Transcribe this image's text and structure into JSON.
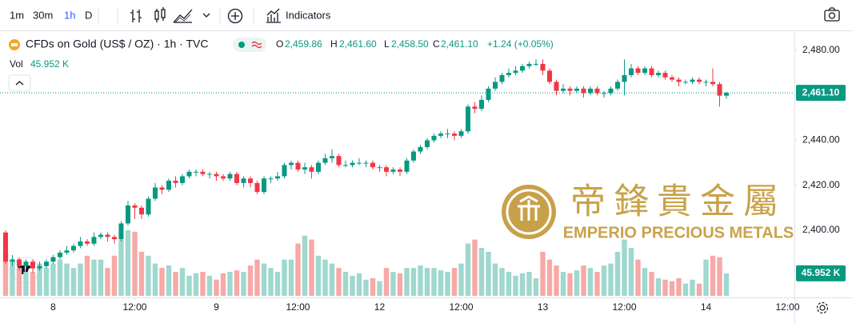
{
  "toolbar": {
    "intervals": [
      "1m",
      "30m",
      "1h",
      "D"
    ],
    "active_interval": 2,
    "indicators": "Indicators"
  },
  "legend": {
    "symbol": "CFDs on Gold (US$ / OZ) · 1h · TVC",
    "o": "O",
    "open": "2,459.86",
    "h": "H",
    "high": "2,461.60",
    "l": "L",
    "low": "2,458.50",
    "c": "C",
    "close": "2,461.10",
    "change": "+1.24 (+0.05%)",
    "vol": "Vol",
    "volume": "45.952 K"
  },
  "watermark": {
    "chinese": "帝鋒貴金屬",
    "english": "EMPERIO PRECIOUS METALS"
  },
  "chart_data": {
    "type": "candlestick",
    "up_color": "#089981",
    "down_color": "#f23645",
    "volume_up_color": "#9fd8ce",
    "volume_down_color": "#f7a9a7",
    "grid": false,
    "xlim": [
      -0.82,
      116
    ],
    "xticks": [
      {
        "value": 7,
        "label": "8"
      },
      {
        "value": 19,
        "label": "12:00"
      },
      {
        "value": 31,
        "label": "9"
      },
      {
        "value": 43,
        "label": "12:00"
      },
      {
        "value": 55,
        "label": "12"
      },
      {
        "value": 67,
        "label": "12:00"
      },
      {
        "value": 79,
        "label": "13"
      },
      {
        "value": 91,
        "label": "12:00"
      },
      {
        "value": 103,
        "label": "14"
      },
      {
        "value": 115,
        "label": "12:00"
      }
    ],
    "ylim": [
      2370.8,
      2488.2
    ],
    "yticks": [
      {
        "value": 2400,
        "label": "2,400.00"
      },
      {
        "value": 2420,
        "label": "2,420.00"
      },
      {
        "value": 2440,
        "label": "2,440.00"
      },
      {
        "value": 2460,
        "label": "2,460.00"
      },
      {
        "value": 2480,
        "label": "2,480.00"
      }
    ],
    "open": [
      2399,
      2386,
      2387,
      2384,
      2386,
      2383,
      2384,
      2386,
      2388,
      2390,
      2391,
      2393,
      2395,
      2394,
      2397,
      2398,
      2397,
      2396,
      2403,
      2411,
      2410,
      2407,
      2414,
      2419,
      2418,
      2422,
      2421,
      2424,
      2426,
      2426,
      2425,
      2425,
      2424,
      2423,
      2425,
      2421,
      2423,
      2421,
      2417,
      2423,
      2423,
      2424,
      2429,
      2430,
      2427,
      2428,
      2426,
      2430,
      2432,
      2433,
      2429,
      2429,
      2430,
      2430,
      2430,
      2428,
      2428,
      2426,
      2427,
      2426,
      2431,
      2435,
      2437,
      2440,
      2442,
      2443,
      2443,
      2442,
      2444,
      2455,
      2454,
      2458,
      2463,
      2466,
      2469,
      2470,
      2471,
      2473,
      2474,
      2474,
      2471,
      2466,
      2462,
      2463,
      2462,
      2463,
      2461,
      2463,
      2461,
      2461,
      2463,
      2466,
      2469,
      2472,
      2470,
      2472,
      2469,
      2470,
      2468,
      2467,
      2466,
      2466,
      2467,
      2466,
      2466,
      2465,
      2459.86
    ],
    "high": [
      2400,
      2389,
      2388,
      2387,
      2387,
      2386,
      2387,
      2389,
      2391,
      2393,
      2394,
      2397,
      2396,
      2399,
      2399,
      2399,
      2398,
      2404,
      2413,
      2412,
      2411,
      2415,
      2421,
      2420,
      2423,
      2424,
      2425,
      2427,
      2427,
      2427,
      2426,
      2426,
      2425,
      2426,
      2426,
      2424,
      2424,
      2422,
      2424,
      2424,
      2426,
      2430,
      2431,
      2431,
      2430,
      2429,
      2431,
      2434,
      2436,
      2434,
      2431,
      2431,
      2432,
      2431,
      2431,
      2429,
      2429,
      2428,
      2428,
      2432,
      2436,
      2438,
      2441,
      2443,
      2444,
      2445,
      2444,
      2445,
      2456,
      2457,
      2460,
      2464,
      2468,
      2470,
      2472,
      2473,
      2474,
      2475,
      2476,
      2476,
      2472,
      2467,
      2465,
      2464,
      2464,
      2464,
      2464,
      2464,
      2462,
      2464,
      2467,
      2476,
      2474,
      2473,
      2473,
      2473,
      2471,
      2471,
      2469,
      2468,
      2467,
      2468,
      2468,
      2467,
      2472,
      2466,
      2461.6
    ],
    "low": [
      2385,
      2384,
      2382,
      2383,
      2381,
      2382,
      2383,
      2385,
      2387,
      2389,
      2390,
      2392,
      2393,
      2393,
      2396,
      2395,
      2394,
      2395,
      2402,
      2405,
      2405,
      2406,
      2413,
      2416,
      2417,
      2419,
      2420,
      2423,
      2424,
      2424,
      2423,
      2422,
      2422,
      2422,
      2420,
      2419,
      2419,
      2416,
      2416,
      2421,
      2422,
      2423,
      2427,
      2426,
      2425,
      2423,
      2425,
      2429,
      2430,
      2428,
      2428,
      2428,
      2429,
      2428,
      2427,
      2426,
      2424,
      2425,
      2424,
      2425,
      2430,
      2434,
      2436,
      2439,
      2441,
      2441,
      2440,
      2441,
      2443,
      2452,
      2453,
      2457,
      2462,
      2465,
      2468,
      2469,
      2470,
      2472,
      2473,
      2469,
      2465,
      2460,
      2461,
      2460,
      2461,
      2459,
      2460,
      2460,
      2459,
      2460,
      2462,
      2460,
      2468,
      2469,
      2469,
      2468,
      2468,
      2467,
      2466,
      2464,
      2465,
      2465,
      2465,
      2464,
      2464,
      2455,
      2458.5
    ],
    "close": [
      2386,
      2387,
      2384,
      2386,
      2383,
      2384,
      2386,
      2388,
      2390,
      2391,
      2393,
      2395,
      2394,
      2397,
      2398,
      2397,
      2396,
      2403,
      2411,
      2410,
      2407,
      2414,
      2419,
      2418,
      2422,
      2421,
      2424,
      2426,
      2426,
      2425,
      2425,
      2424,
      2423,
      2425,
      2421,
      2423,
      2421,
      2417,
      2423,
      2423,
      2424,
      2429,
      2430,
      2427,
      2428,
      2426,
      2430,
      2432,
      2433,
      2429,
      2429,
      2430,
      2430,
      2430,
      2428,
      2428,
      2426,
      2427,
      2426,
      2431,
      2435,
      2437,
      2440,
      2442,
      2443,
      2443,
      2442,
      2444,
      2455,
      2454,
      2458,
      2463,
      2466,
      2469,
      2470,
      2471,
      2473,
      2474,
      2474,
      2471,
      2466,
      2462,
      2463,
      2462,
      2463,
      2461,
      2463,
      2461,
      2461,
      2463,
      2466,
      2469,
      2472,
      2470,
      2472,
      2469,
      2470,
      2468,
      2467,
      2466,
      2466,
      2467,
      2466,
      2466,
      2465,
      2459.86,
      2461.1
    ],
    "volume": [
      90000,
      74000,
      57000,
      49000,
      49000,
      66000,
      57000,
      66000,
      74000,
      66000,
      57000,
      66000,
      82000,
      74000,
      74000,
      57000,
      82000,
      115000,
      134000,
      131000,
      90000,
      82000,
      66000,
      57000,
      62000,
      49000,
      57000,
      41000,
      46000,
      49000,
      41000,
      33000,
      46000,
      49000,
      52000,
      49000,
      62000,
      74000,
      66000,
      57000,
      49000,
      74000,
      74000,
      107000,
      123000,
      115000,
      82000,
      74000,
      66000,
      57000,
      49000,
      41000,
      46000,
      33000,
      36000,
      30000,
      57000,
      49000,
      46000,
      57000,
      57000,
      62000,
      57000,
      57000,
      52000,
      49000,
      57000,
      66000,
      107000,
      115000,
      98000,
      90000,
      66000,
      57000,
      49000,
      41000,
      46000,
      49000,
      36000,
      90000,
      74000,
      62000,
      49000,
      46000,
      52000,
      62000,
      57000,
      49000,
      62000,
      66000,
      90000,
      115000,
      98000,
      74000,
      57000,
      49000,
      36000,
      33000,
      30000,
      36000,
      25000,
      33000,
      25000,
      74000,
      82000,
      79000,
      45952
    ]
  }
}
